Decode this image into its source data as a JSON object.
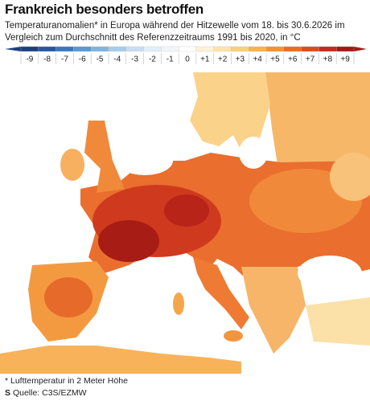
{
  "header": {
    "title": "Frankreich besonders betroffen",
    "subtitle": "Temperaturanomalien* in Europa während der Hitzewelle vom 18. bis 30.6.2026 im Vergleich zum Durchschnitt des Referenzzeitraums 1991 bis 2020, in °C"
  },
  "legend": {
    "items": [
      {
        "label": "-9",
        "color": "#1c3f82"
      },
      {
        "label": "-8",
        "color": "#2558a2"
      },
      {
        "label": "-7",
        "color": "#3a78c0"
      },
      {
        "label": "-6",
        "color": "#5a98d4"
      },
      {
        "label": "-5",
        "color": "#80b4e0"
      },
      {
        "label": "-4",
        "color": "#a8cceb"
      },
      {
        "label": "-3",
        "color": "#c8def2"
      },
      {
        "label": "-2",
        "color": "#e2eef8"
      },
      {
        "label": "-1",
        "color": "#f2f6fb"
      },
      {
        "label": "0",
        "color": "#ffffff"
      },
      {
        "label": "+1",
        "color": "#fdf3d4"
      },
      {
        "label": "+2",
        "color": "#fde4a6"
      },
      {
        "label": "+3",
        "color": "#fcd07a"
      },
      {
        "label": "+4",
        "color": "#f9b24d"
      },
      {
        "label": "+5",
        "color": "#f39233"
      },
      {
        "label": "+6",
        "color": "#ec6d22"
      },
      {
        "label": "+7",
        "color": "#e04a1c"
      },
      {
        "label": "+8",
        "color": "#c82a1a"
      },
      {
        "label": "+9",
        "color": "#a01a16"
      }
    ]
  },
  "footer": {
    "note": "* Lufttemperatur in 2 Meter Höhe",
    "logo": "S",
    "source": "Quelle: C3S/EZMW"
  }
}
